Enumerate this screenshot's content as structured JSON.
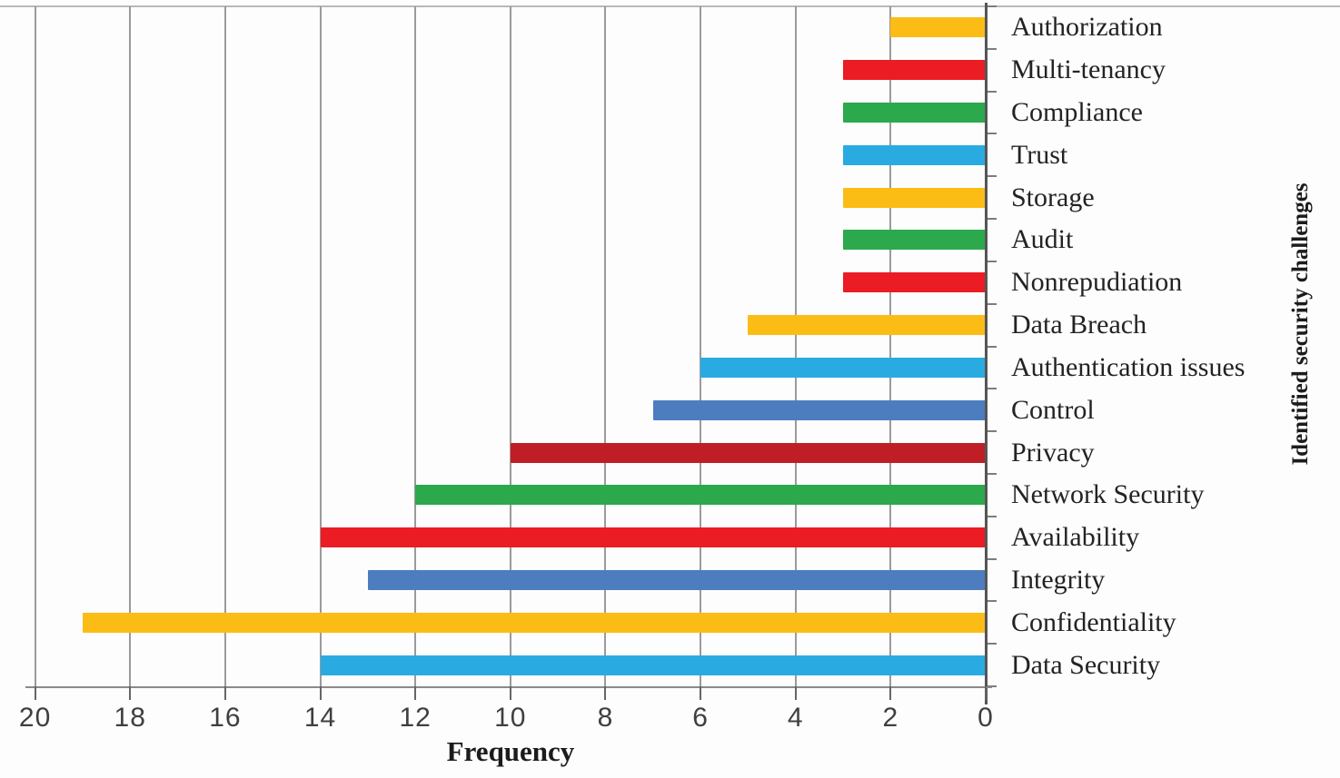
{
  "chart_data": {
    "type": "bar",
    "orientation": "horizontal",
    "title": "",
    "xlabel": "Frequency",
    "ylabel": "Identified security challenges",
    "x_axis": {
      "min": 0,
      "max": 20,
      "reversed": true,
      "tick_step": 2,
      "tick_labels": [
        "20",
        "18",
        "16",
        "14",
        "12",
        "10",
        "8",
        "6",
        "4",
        "2",
        "0"
      ]
    },
    "grid": true,
    "legend": false,
    "palette": {
      "yellow": "#FBBC15",
      "red": "#EC1C24",
      "green": "#2BA94C",
      "cyan": "#29ABE2",
      "steel_blue": "#4D7DBE",
      "dark_red": "#BE1E24"
    },
    "categories_top_to_bottom": [
      {
        "label": "Authorization",
        "value": 2,
        "color": "yellow"
      },
      {
        "label": "Multi-tenancy",
        "value": 3,
        "color": "red"
      },
      {
        "label": "Compliance",
        "value": 3,
        "color": "green"
      },
      {
        "label": "Trust",
        "value": 3,
        "color": "cyan"
      },
      {
        "label": "Storage",
        "value": 3,
        "color": "yellow"
      },
      {
        "label": "Audit",
        "value": 3,
        "color": "green"
      },
      {
        "label": "Nonrepudiation",
        "value": 3,
        "color": "red"
      },
      {
        "label": "Data Breach",
        "value": 5,
        "color": "yellow"
      },
      {
        "label": "Authentication issues",
        "value": 6,
        "color": "cyan"
      },
      {
        "label": "Control",
        "value": 7,
        "color": "steel_blue"
      },
      {
        "label": "Privacy",
        "value": 10,
        "color": "dark_red"
      },
      {
        "label": "Network Security",
        "value": 12,
        "color": "green"
      },
      {
        "label": "Availability",
        "value": 14,
        "color": "red"
      },
      {
        "label": "Integrity",
        "value": 13,
        "color": "steel_blue"
      },
      {
        "label": "Confidentiality",
        "value": 19,
        "color": "yellow"
      },
      {
        "label": "Data Security",
        "value": 14,
        "color": "cyan"
      }
    ]
  }
}
